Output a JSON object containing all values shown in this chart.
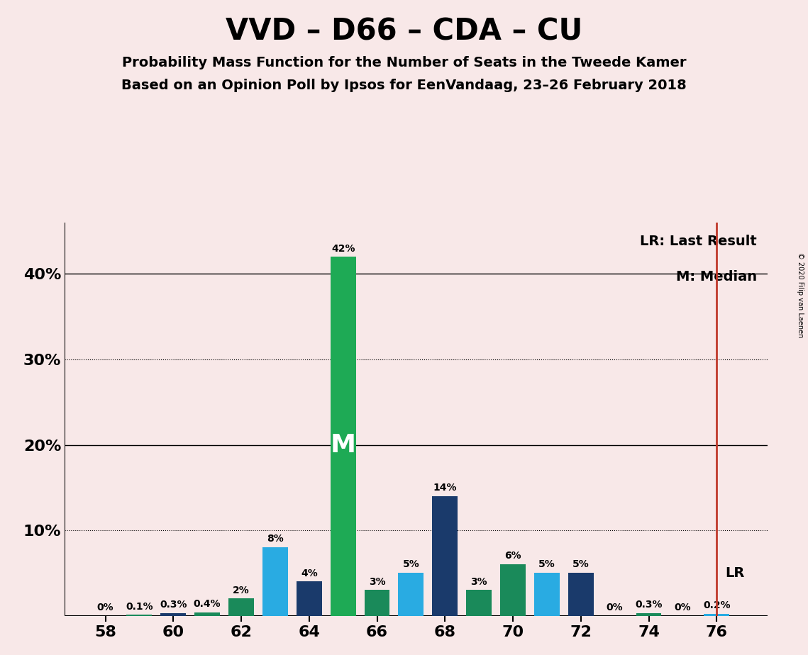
{
  "title": "VVD – D66 – CDA – CU",
  "subtitle1": "Probability Mass Function for the Number of Seats in the Tweede Kamer",
  "subtitle2": "Based on an Opinion Poll by Ipsos for EenVandaag, 23–26 February 2018",
  "copyright": "© 2020 Filip van Laenen",
  "legend_lr": "LR: Last Result",
  "legend_m": "M: Median",
  "lr_label": "LR",
  "background_color": "#f8e8e8",
  "seats": [
    58,
    59,
    60,
    61,
    62,
    63,
    64,
    65,
    66,
    67,
    68,
    69,
    70,
    71,
    72,
    73,
    74,
    75,
    76
  ],
  "values": [
    0.0,
    0.1,
    0.3,
    0.4,
    2.0,
    8.0,
    4.0,
    42.0,
    3.0,
    5.0,
    14.0,
    3.0,
    6.0,
    5.0,
    5.0,
    0.0,
    0.3,
    0.0,
    0.2
  ],
  "label_values": [
    "0%",
    "0.1%",
    "0.3%",
    "0.4%",
    "2%",
    "8%",
    "4%",
    "42%",
    "3%",
    "5%",
    "14%",
    "3%",
    "6%",
    "5%",
    "5%",
    "0%",
    "0.3%",
    "0%",
    "0.2%"
  ],
  "bar_colors": [
    "#1a3a6b",
    "#1a8a5a",
    "#1a3a6b",
    "#1a8a5a",
    "#1a8a5a",
    "#29abe2",
    "#1a3a6b",
    "#1eaa55",
    "#1a8a5a",
    "#29abe2",
    "#1a3a6b",
    "#1a8a5a",
    "#1a8a5a",
    "#29abe2",
    "#1a3a6b",
    "#1a3a6b",
    "#1a8a5a",
    "#1a3a6b",
    "#29abe2"
  ],
  "median_seat": 65,
  "lr_seat": 76,
  "ylim": [
    0,
    46
  ],
  "yticks": [
    0,
    10,
    20,
    30,
    40
  ],
  "ytick_labels": [
    "",
    "10%",
    "20%",
    "30%",
    "40%"
  ],
  "dotted_lines": [
    10,
    30
  ],
  "solid_lines": [
    20,
    40
  ],
  "title_fontsize": 30,
  "subtitle_fontsize": 14,
  "axis_fontsize": 16,
  "label_fontsize": 10,
  "bar_width": 0.75
}
